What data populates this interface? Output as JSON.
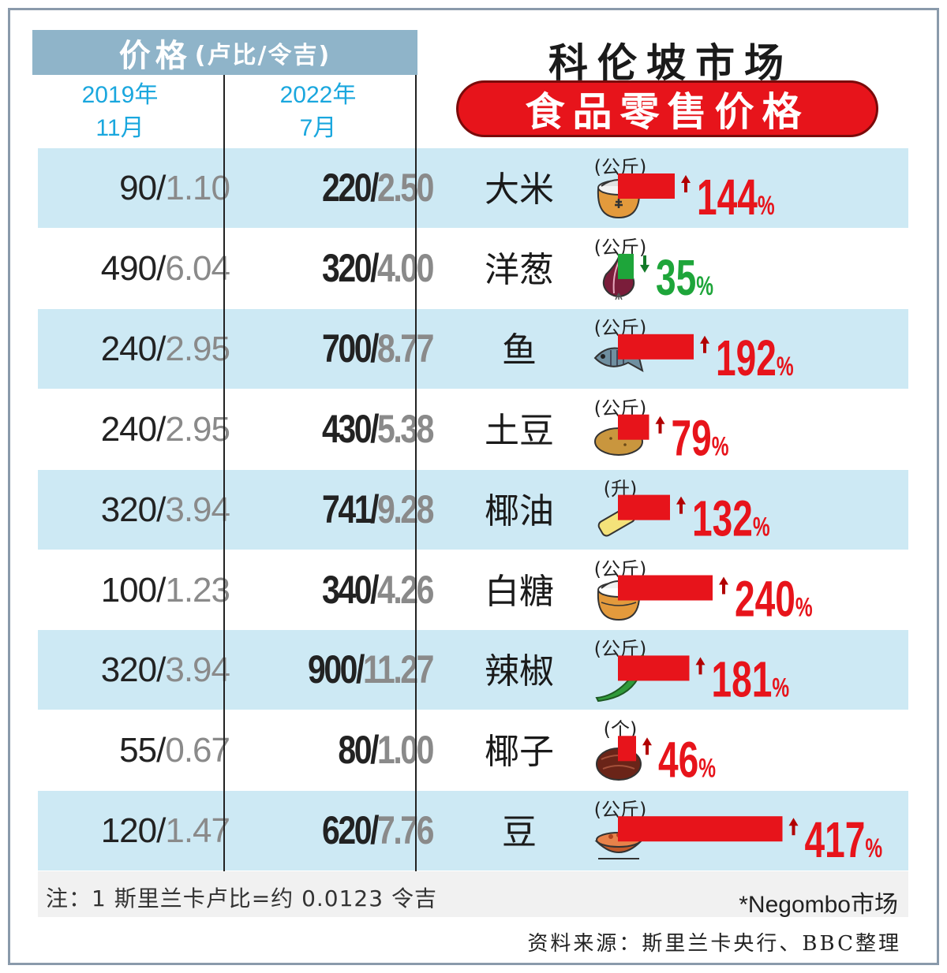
{
  "header": {
    "price_title": "价格",
    "price_unit": "(卢比/令吉)",
    "col_2019_year": "2019年",
    "col_2019_month": "11月",
    "col_2022_year": "2022年",
    "col_2022_month": "7月",
    "title_main": "科伦坡市场",
    "title_sub": "食品零售价格"
  },
  "colors": {
    "up": "#e7141b",
    "down": "#1ea53a",
    "header_bg": "#8fb4c9",
    "row_shade": "#cde9f4",
    "year_text": "#1aa7de"
  },
  "rows": [
    {
      "name": "大米",
      "unit": "(公斤)",
      "icon": "rice-sack-icon",
      "old_lkr": "90",
      "old_myr": "1.10",
      "new_lkr": "220",
      "new_myr": "2.50",
      "change": "144",
      "direction": "up"
    },
    {
      "name": "洋葱",
      "unit": "(公斤)",
      "icon": "onion-icon",
      "old_lkr": "490",
      "old_myr": "6.04",
      "new_lkr": "320",
      "new_myr": "4.00",
      "change": "35",
      "direction": "down"
    },
    {
      "name": "鱼",
      "unit": "(公斤)",
      "icon": "fish-icon",
      "old_lkr": "240",
      "old_myr": "2.95",
      "new_lkr": "700",
      "new_myr": "8.77",
      "change": "192",
      "direction": "up"
    },
    {
      "name": "土豆",
      "unit": "(公斤)",
      "icon": "potato-icon",
      "old_lkr": "240",
      "old_myr": "2.95",
      "new_lkr": "430",
      "new_myr": "5.38",
      "change": "79",
      "direction": "up"
    },
    {
      "name": "椰油",
      "unit": "(升)",
      "icon": "oil-bottle-icon",
      "old_lkr": "320",
      "old_myr": "3.94",
      "new_lkr": "741",
      "new_myr": "9.28",
      "change": "132",
      "direction": "up"
    },
    {
      "name": "白糖",
      "unit": "(公斤)",
      "icon": "sugar-sack-icon",
      "old_lkr": "100",
      "old_myr": "1.23",
      "new_lkr": "340",
      "new_myr": "4.26",
      "change": "240",
      "direction": "up"
    },
    {
      "name": "辣椒",
      "unit": "(公斤)",
      "icon": "chili-icon",
      "old_lkr": "320",
      "old_myr": "3.94",
      "new_lkr": "900",
      "new_myr": "11.27",
      "change": "181",
      "direction": "up"
    },
    {
      "name": "椰子",
      "unit": "(个)",
      "icon": "coconut-icon",
      "old_lkr": "55",
      "old_myr": "0.67",
      "new_lkr": "80",
      "new_myr": "1.00",
      "change": "46",
      "direction": "up"
    },
    {
      "name": "豆",
      "unit": "(公斤)",
      "icon": "beans-bowl-icon",
      "old_lkr": "120",
      "old_myr": "1.47",
      "new_lkr": "620",
      "new_myr": "7.76",
      "change": "417",
      "direction": "up"
    }
  ],
  "footer": {
    "note": "注：1 斯里兰卡卢比=约 0.0123 令吉",
    "market": "*Negombo市场",
    "source": "资料来源：斯里兰卡央行、BBC整理"
  },
  "chart_data": {
    "type": "bar",
    "title": "食品零售价格",
    "categories": [
      "大米",
      "洋葱",
      "鱼",
      "土豆",
      "椰油",
      "白糖",
      "辣椒",
      "椰子",
      "豆"
    ],
    "values": [
      144,
      -35,
      192,
      79,
      132,
      240,
      181,
      46,
      417
    ],
    "value_unit": "%",
    "table": {
      "columns": [
        "2019年11月",
        "2022年7月"
      ],
      "price_2019_lkr": [
        90,
        490,
        240,
        240,
        320,
        100,
        320,
        55,
        120
      ],
      "price_2019_myr": [
        1.1,
        6.04,
        2.95,
        2.95,
        3.94,
        1.23,
        3.94,
        0.67,
        1.47
      ],
      "price_2022_lkr": [
        220,
        320,
        700,
        430,
        741,
        340,
        900,
        80,
        620
      ],
      "price_2022_myr": [
        2.5,
        4.0,
        8.77,
        5.38,
        9.28,
        4.26,
        11.27,
        1.0,
        7.76
      ]
    }
  }
}
